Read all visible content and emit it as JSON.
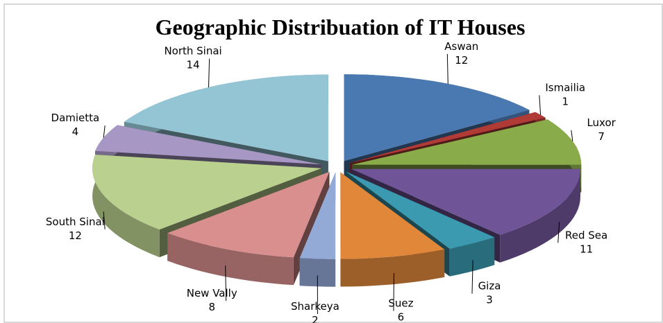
{
  "chart_data": {
    "type": "pie",
    "title": "Geographic Distribuation of IT Houses",
    "categories": [
      "Aswan",
      "Ismailia",
      "Luxor",
      "Red Sea",
      "Giza",
      "Suez",
      "Sharkeya",
      "New Vally",
      "South Sinai",
      "Damietta",
      "North Sinai"
    ],
    "values": [
      12,
      1,
      7,
      11,
      3,
      6,
      2,
      8,
      12,
      4,
      14
    ],
    "colors": [
      "#4a78b0",
      "#b03a36",
      "#8aab4a",
      "#6f5598",
      "#3b9ab0",
      "#e0873a",
      "#93a9d6",
      "#d98f8d",
      "#b9d08e",
      "#a797c4",
      "#93c5d4"
    ]
  }
}
